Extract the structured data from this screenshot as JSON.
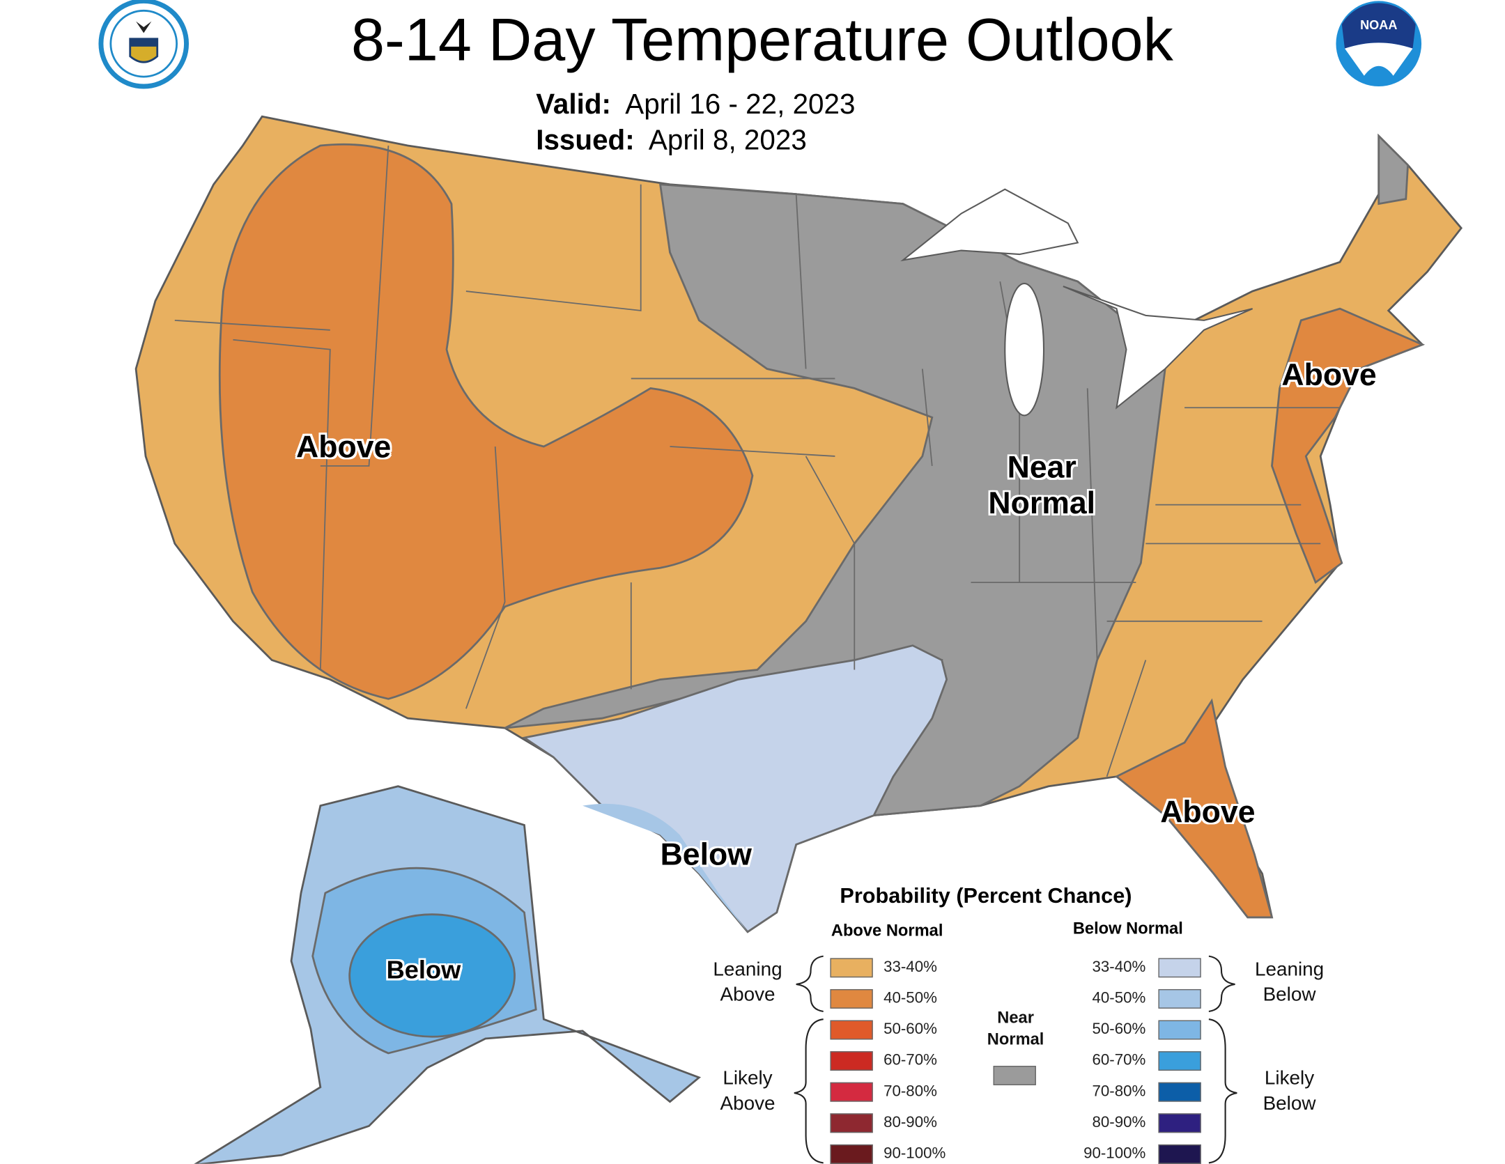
{
  "header": {
    "title": "8-14 Day Temperature Outlook",
    "valid_label": "Valid:",
    "valid_value": "April 16 - 22, 2023",
    "issued_label": "Issued:",
    "issued_value": "April 8, 2023",
    "left_logo": "UNITED STATES OF AMERICA · DEPARTMENT OF COMMERCE",
    "right_logo": "NOAA"
  },
  "map_labels": {
    "west": "Above",
    "northeast": "Above",
    "florida": "Above",
    "midwest_1": "Near",
    "midwest_2": "Normal",
    "texas": "Below",
    "alaska": "Below"
  },
  "colors": {
    "above_33_40": "#E8B060",
    "above_40_50": "#E08840",
    "near_normal": "#9B9B9B",
    "below_33_40": "#C5D3EA",
    "below_40_50": "#A6C6E6",
    "below_50_60": "#7EB6E4",
    "border": "#5A5A5A"
  },
  "legend": {
    "title": "Probability (Percent Chance)",
    "above_header": "Above Normal",
    "below_header": "Below Normal",
    "leaning_above": [
      "Leaning",
      "Above"
    ],
    "likely_above": [
      "Likely",
      "Above"
    ],
    "leaning_below": [
      "Leaning",
      "Below"
    ],
    "likely_below": [
      "Likely",
      "Below"
    ],
    "near_normal": [
      "Near",
      "Normal"
    ],
    "near_normal_color": "#9B9B9B",
    "above": [
      {
        "range": "33-40%",
        "color": "#E8B060"
      },
      {
        "range": "40-50%",
        "color": "#E08840"
      },
      {
        "range": "50-60%",
        "color": "#E05A2A"
      },
      {
        "range": "60-70%",
        "color": "#CC2A22"
      },
      {
        "range": "70-80%",
        "color": "#D42A40"
      },
      {
        "range": "80-90%",
        "color": "#8E2830"
      },
      {
        "range": "90-100%",
        "color": "#6A1A1E"
      }
    ],
    "below": [
      {
        "range": "33-40%",
        "color": "#C5D3EA"
      },
      {
        "range": "40-50%",
        "color": "#A6C6E6"
      },
      {
        "range": "50-60%",
        "color": "#7EB6E4"
      },
      {
        "range": "60-70%",
        "color": "#3A9FDC"
      },
      {
        "range": "70-80%",
        "color": "#0C5EA8"
      },
      {
        "range": "80-90%",
        "color": "#2E2080"
      },
      {
        "range": "90-100%",
        "color": "#1E1650"
      }
    ]
  }
}
